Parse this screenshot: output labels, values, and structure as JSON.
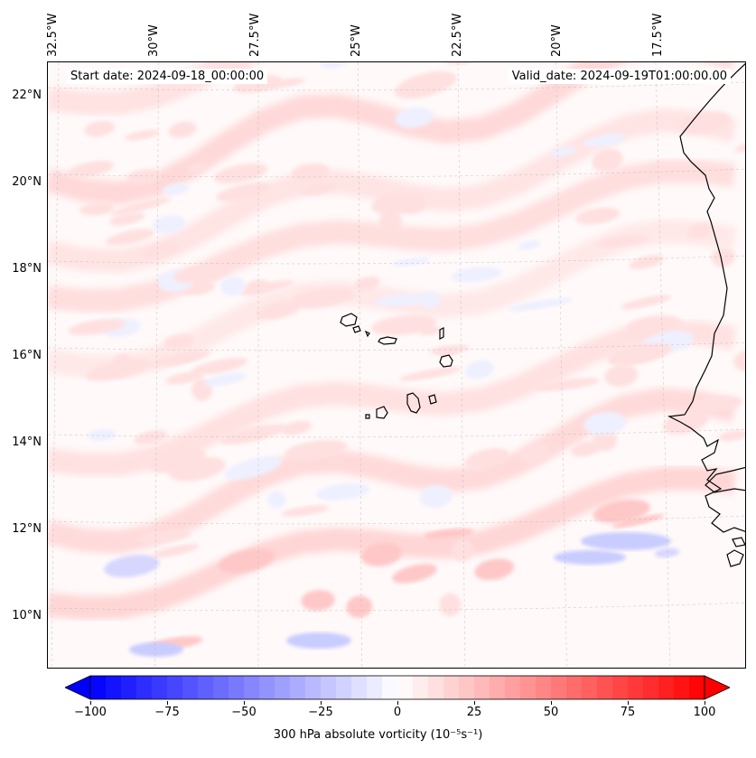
{
  "map": {
    "start_date": "Start date: 2024-09-18_00:00:00",
    "valid_date": "Valid_date: 2024-09-19T01:00:00.00",
    "longitude_labels": [
      "32.5°W",
      "30°W",
      "27.5°W",
      "25°W",
      "22.5°W",
      "20°W",
      "17.5°W"
    ],
    "latitude_labels": [
      "22°N",
      "20°N",
      "18°N",
      "16°N",
      "14°N",
      "12°N",
      "10°N"
    ],
    "field": "300 hPa absolute vorticity",
    "colormap": "bwr",
    "colors": {
      "negative": "#0000ff",
      "neutral": "#ffffff",
      "positive": "#ff0000",
      "coastline": "#000000",
      "gridline": "#b0b0b0"
    }
  },
  "colorbar": {
    "label": "300 hPa absolute vorticity (10⁻⁵s⁻¹)",
    "ticks": [
      "−100",
      "−75",
      "−50",
      "−25",
      "0",
      "25",
      "50",
      "75",
      "100"
    ],
    "range": [
      -100,
      100
    ],
    "extend": "both"
  }
}
